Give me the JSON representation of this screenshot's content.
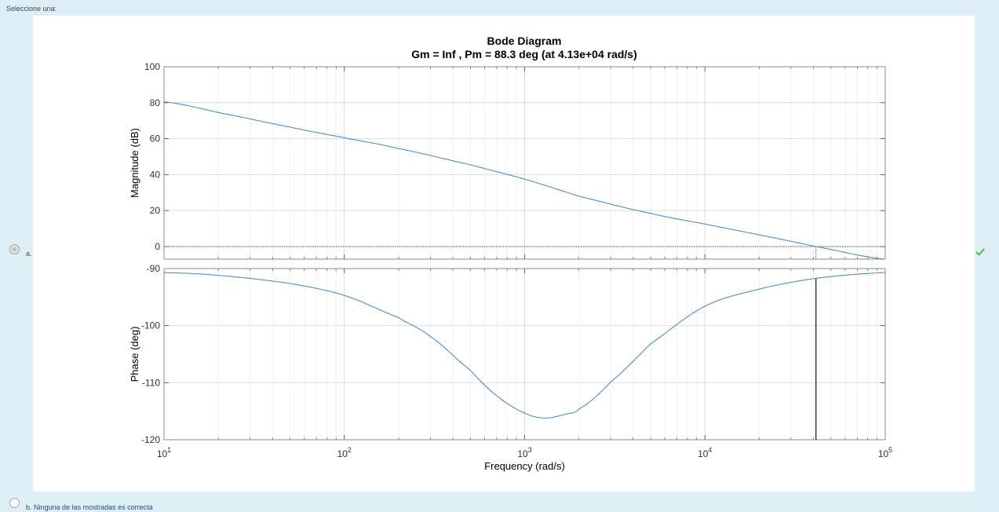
{
  "question": {
    "prompt": "Seleccione una:"
  },
  "options": [
    {
      "letter": "a.",
      "text": "",
      "selected": true,
      "correct": true
    },
    {
      "letter": "b.",
      "text": "Ninguna de las mostradas es correcta",
      "selected": false
    }
  ],
  "colors": {
    "curve": "#4d8fc4",
    "correct": "#5cb85c",
    "background": "#def0f6"
  },
  "chart_data": {
    "type": "line",
    "title": "Bode Diagram",
    "subtitle": "Gm = Inf ,  Pm = 88.3 deg (at 4.13e+04 rad/s)",
    "xlabel": "Frequency  (rad/s)",
    "x_scale": "log",
    "xlim": [
      10,
      100000
    ],
    "x_ticks": [
      {
        "value": 10,
        "base": "10",
        "exp": "1"
      },
      {
        "value": 100,
        "base": "10",
        "exp": "2"
      },
      {
        "value": 1000,
        "base": "10",
        "exp": "3"
      },
      {
        "value": 10000,
        "base": "10",
        "exp": "4"
      },
      {
        "value": 100000,
        "base": "10",
        "exp": "5"
      }
    ],
    "crossover_frequency": 41300,
    "magnitude": {
      "ylabel": "Magnitude (dB)",
      "ylim": [
        -7,
        100
      ],
      "y_ticks": [
        0,
        20,
        40,
        60,
        80,
        100
      ],
      "y_tick_labels": [
        "0",
        "20",
        "40",
        "60",
        "80",
        "100"
      ],
      "series": [
        {
          "name": "Magnitude",
          "x": [
            10,
            20,
            50,
            100,
            200,
            500,
            1000,
            2000,
            5000,
            10000,
            20000,
            41300,
            100000
          ],
          "y": [
            80.5,
            74.5,
            66.5,
            60.5,
            54.5,
            45.5,
            37.5,
            28.0,
            18.5,
            12.5,
            6.5,
            0,
            -7
          ]
        }
      ]
    },
    "phase": {
      "ylabel": "Phase (deg)",
      "ylim": [
        -120,
        -90
      ],
      "y_ticks": [
        -90,
        -100,
        -110,
        -120
      ],
      "y_tick_labels": [
        "-90",
        "-100",
        "-110",
        "-120"
      ],
      "series": [
        {
          "name": "Phase",
          "x": [
            10,
            20,
            50,
            100,
            200,
            300,
            500,
            700,
            1000,
            1300,
            1700,
            2000,
            3000,
            5000,
            10000,
            20000,
            41300,
            100000
          ],
          "y": [
            -90.7,
            -91.2,
            -92.6,
            -94.7,
            -98.6,
            -101.9,
            -107.8,
            -112.3,
            -115.3,
            -116.2,
            -115.5,
            -114.6,
            -109.9,
            -103.2,
            -96.6,
            -93.6,
            -91.7,
            -90.7
          ]
        }
      ]
    }
  }
}
